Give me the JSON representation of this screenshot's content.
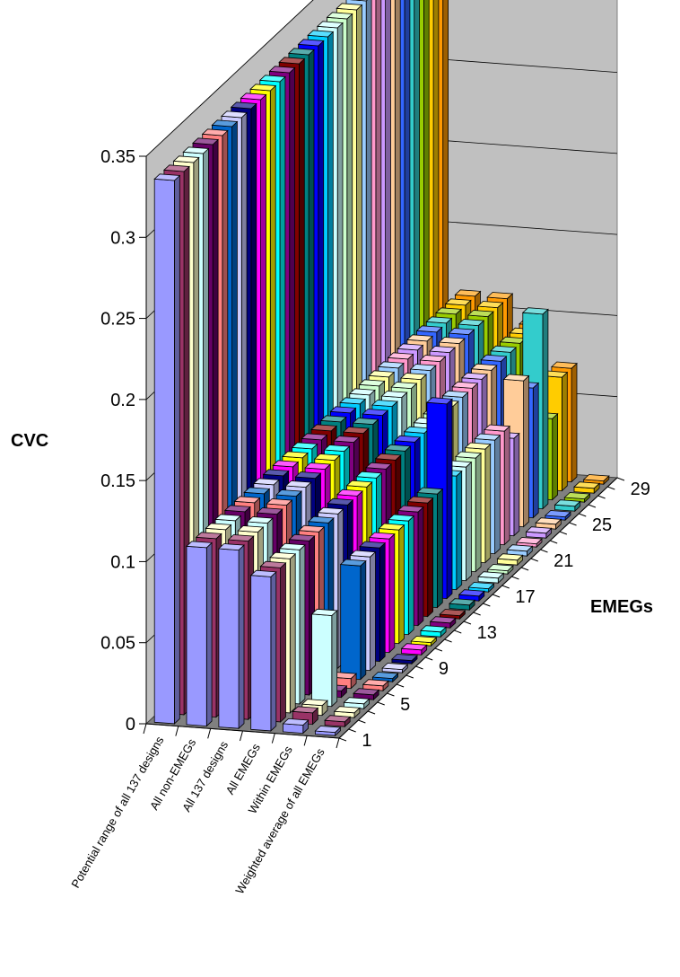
{
  "chart_data": {
    "type": "bar",
    "subtype": "3d-column",
    "ylabel": "CVC",
    "zlabel": "EMEGs",
    "ylim": [
      0,
      0.35
    ],
    "yticks": [
      "0",
      "0.05",
      "0.1",
      "0.15",
      "0.2",
      "0.25",
      "0.3",
      "0.35"
    ],
    "categories": [
      "Potential range of all 137 designs",
      "All non-EMEGs",
      "All 137 designs",
      "All EMEGs",
      "Within EMEGs",
      "Weighted average of all EMEGs"
    ],
    "depth_ticks": [
      "1",
      "5",
      "9",
      "13",
      "17",
      "21",
      "25",
      "29"
    ],
    "grid": true,
    "colors": [
      "#9999ff",
      "#993366",
      "#ffffcc",
      "#ccffff",
      "#660066",
      "#ff8080",
      "#0066cc",
      "#ccccff",
      "#000080",
      "#ff00ff",
      "#ffff00",
      "#00ffff",
      "#800080",
      "#800000",
      "#008080",
      "#0000ff",
      "#00ccff",
      "#ccffff",
      "#ccffcc",
      "#ffff99",
      "#99ccff",
      "#ff99cc",
      "#cc99ff",
      "#ffcc99",
      "#3366ff",
      "#33cccc",
      "#99cc00",
      "#ffcc00",
      "#ff9900"
    ],
    "series": [
      {
        "values": [
          0.335,
          0.11,
          0.11,
          0.095,
          0.005,
          0.002
        ]
      },
      {
        "values": [
          0.335,
          0.11,
          0.11,
          0.095,
          0.007,
          0.003
        ]
      },
      {
        "values": [
          0.335,
          0.11,
          0.11,
          0.095,
          0.006,
          0.003
        ]
      },
      {
        "values": [
          0.335,
          0.11,
          0.11,
          0.095,
          0.056,
          0.003
        ]
      },
      {
        "values": [
          0.335,
          0.11,
          0.11,
          0.095,
          0.004,
          0.003
        ]
      },
      {
        "values": [
          0.335,
          0.11,
          0.11,
          0.095,
          0.006,
          0.003
        ]
      },
      {
        "values": [
          0.335,
          0.11,
          0.11,
          0.095,
          0.07,
          0.002
        ]
      },
      {
        "values": [
          0.335,
          0.11,
          0.11,
          0.095,
          0.07,
          0.002
        ]
      },
      {
        "values": [
          0.335,
          0.11,
          0.11,
          0.095,
          0.07,
          0.002
        ]
      },
      {
        "values": [
          0.335,
          0.11,
          0.11,
          0.095,
          0.07,
          0.003
        ]
      },
      {
        "values": [
          0.335,
          0.11,
          0.11,
          0.095,
          0.07,
          0.002
        ]
      },
      {
        "values": [
          0.335,
          0.11,
          0.11,
          0.095,
          0.07,
          0.003
        ]
      },
      {
        "values": [
          0.335,
          0.11,
          0.11,
          0.095,
          0.07,
          0.003
        ]
      },
      {
        "values": [
          0.335,
          0.11,
          0.11,
          0.095,
          0.07,
          0.002
        ]
      },
      {
        "values": [
          0.335,
          0.11,
          0.11,
          0.095,
          0.07,
          0.003
        ]
      },
      {
        "values": [
          0.335,
          0.11,
          0.11,
          0.095,
          0.12,
          0.003
        ]
      },
      {
        "values": [
          0.335,
          0.11,
          0.11,
          0.095,
          0.07,
          0.002
        ]
      },
      {
        "values": [
          0.335,
          0.11,
          0.11,
          0.095,
          0.07,
          0.003
        ]
      },
      {
        "values": [
          0.335,
          0.11,
          0.11,
          0.095,
          0.07,
          0.002
        ]
      },
      {
        "values": [
          0.335,
          0.11,
          0.11,
          0.095,
          0.07,
          0.003
        ]
      },
      {
        "values": [
          0.335,
          0.11,
          0.11,
          0.095,
          0.07,
          0.003
        ]
      },
      {
        "values": [
          0.335,
          0.11,
          0.11,
          0.095,
          0.07,
          0.002
        ]
      },
      {
        "values": [
          0.335,
          0.11,
          0.11,
          0.095,
          0.06,
          0.003
        ]
      },
      {
        "values": [
          0.335,
          0.11,
          0.11,
          0.095,
          0.09,
          0.003
        ]
      },
      {
        "values": [
          0.335,
          0.11,
          0.11,
          0.095,
          0.08,
          0.002
        ]
      },
      {
        "values": [
          0.335,
          0.11,
          0.11,
          0.095,
          0.12,
          0.003
        ]
      },
      {
        "values": [
          0.335,
          0.11,
          0.11,
          0.095,
          0.05,
          0.002
        ]
      },
      {
        "values": [
          0.335,
          0.11,
          0.11,
          0.095,
          0.07,
          0.003
        ]
      },
      {
        "values": [
          0.335,
          0.11,
          0.11,
          0.095,
          0.07,
          0.002
        ]
      }
    ]
  }
}
